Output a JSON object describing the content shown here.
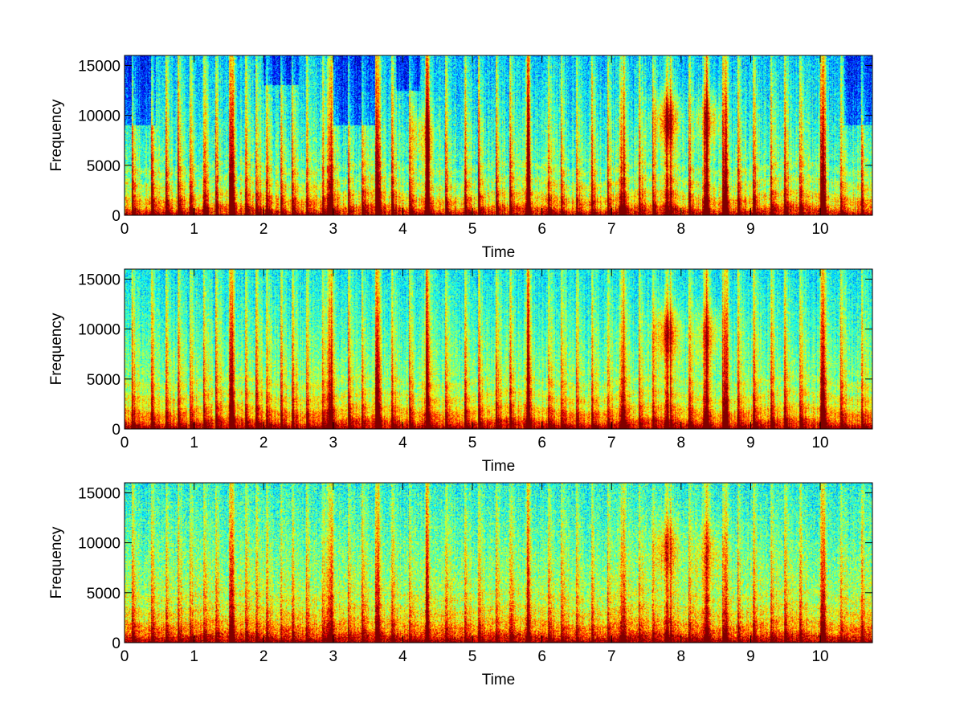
{
  "colors": {
    "background": "#ffffff",
    "colormap": "jet",
    "colormap_stops": [
      "#00008f",
      "#0000ff",
      "#00ffff",
      "#ffff00",
      "#ff0000",
      "#800000"
    ]
  },
  "chart_data": [
    {
      "type": "heatmap",
      "panel": "top",
      "xlabel": "Time",
      "ylabel": "Frequency",
      "xlim": [
        0,
        10.75
      ],
      "ylim": [
        0,
        16000
      ],
      "x_ticks": [
        0,
        1,
        2,
        3,
        4,
        5,
        6,
        7,
        8,
        9,
        10
      ],
      "x_tick_labels": [
        "0",
        "1",
        "2",
        "3",
        "4",
        "5",
        "6",
        "7",
        "8",
        "9",
        "10"
      ],
      "y_ticks": [
        0,
        5000,
        10000,
        15000
      ],
      "y_tick_labels": [
        "0",
        "5000",
        "10000",
        "15000"
      ],
      "colormap": "jet",
      "grid": false,
      "contrast": 1.0,
      "noise": 0.22,
      "base_level": 0.38,
      "onsets": [
        0.12,
        0.4,
        0.6,
        0.78,
        0.95,
        1.15,
        1.32,
        1.52,
        1.75,
        1.9,
        2.05,
        2.25,
        2.42,
        2.62,
        2.85,
        2.98,
        3.22,
        3.42,
        3.62,
        3.85,
        4.1,
        4.35,
        4.62,
        4.9,
        5.1,
        5.35,
        5.55,
        5.8,
        6.1,
        6.28,
        6.5,
        6.72,
        6.95,
        7.18,
        7.4,
        7.6,
        7.85,
        8.12,
        8.38,
        8.6,
        8.82,
        9.05,
        9.3,
        9.5,
        9.72,
        10.02,
        10.3,
        10.6
      ],
      "strong_onsets": [
        1.55,
        2.95,
        3.65,
        4.35,
        5.8,
        7.15,
        7.8,
        8.35,
        8.65,
        10.05
      ],
      "hot_spots": [
        {
          "t": 7.8,
          "f": 9500,
          "strength": 0.45
        },
        {
          "t": 8.4,
          "f": 9500,
          "strength": 0.3
        },
        {
          "t": 4.3,
          "f": 8000,
          "strength": 0.25
        }
      ],
      "quiet_regions": [
        {
          "t0": 0.0,
          "t1": 0.45,
          "f0": 9000,
          "f1": 16000
        },
        {
          "t0": 2.0,
          "t1": 2.5,
          "f0": 13000,
          "f1": 16000
        },
        {
          "t0": 3.0,
          "t1": 3.6,
          "f0": 9000,
          "f1": 16000
        },
        {
          "t0": 3.9,
          "t1": 4.25,
          "f0": 12500,
          "f1": 16000
        },
        {
          "t0": 10.35,
          "t1": 10.75,
          "f0": 9000,
          "f1": 16000
        }
      ]
    },
    {
      "type": "heatmap",
      "panel": "middle",
      "xlabel": "Time",
      "ylabel": "Frequency",
      "xlim": [
        0,
        10.75
      ],
      "ylim": [
        0,
        16000
      ],
      "x_ticks": [
        0,
        1,
        2,
        3,
        4,
        5,
        6,
        7,
        8,
        9,
        10
      ],
      "x_tick_labels": [
        "0",
        "1",
        "2",
        "3",
        "4",
        "5",
        "6",
        "7",
        "8",
        "9",
        "10"
      ],
      "y_ticks": [
        0,
        5000,
        10000,
        15000
      ],
      "y_tick_labels": [
        "0",
        "5000",
        "10000",
        "15000"
      ],
      "colormap": "jet",
      "grid": false,
      "contrast": 0.85,
      "noise": 0.2,
      "base_level": 0.44,
      "onsets": [
        0.12,
        0.4,
        0.6,
        0.78,
        0.95,
        1.15,
        1.32,
        1.52,
        1.75,
        1.9,
        2.05,
        2.25,
        2.42,
        2.62,
        2.85,
        2.98,
        3.22,
        3.42,
        3.62,
        3.85,
        4.1,
        4.35,
        4.62,
        4.9,
        5.1,
        5.35,
        5.55,
        5.8,
        6.1,
        6.28,
        6.5,
        6.72,
        6.95,
        7.18,
        7.4,
        7.6,
        7.85,
        8.12,
        8.38,
        8.6,
        8.82,
        9.05,
        9.3,
        9.5,
        9.72,
        10.02,
        10.3,
        10.6
      ],
      "strong_onsets": [
        1.55,
        2.95,
        3.65,
        4.35,
        5.8,
        7.15,
        7.8,
        8.35,
        8.65,
        10.05
      ],
      "hot_spots": [
        {
          "t": 7.8,
          "f": 9500,
          "strength": 0.4
        },
        {
          "t": 8.4,
          "f": 9500,
          "strength": 0.25
        }
      ],
      "quiet_regions": []
    },
    {
      "type": "heatmap",
      "panel": "bottom",
      "xlabel": "Time",
      "ylabel": "Frequency",
      "xlim": [
        0,
        10.75
      ],
      "ylim": [
        0,
        16000
      ],
      "x_ticks": [
        0,
        1,
        2,
        3,
        4,
        5,
        6,
        7,
        8,
        9,
        10
      ],
      "x_tick_labels": [
        "0",
        "1",
        "2",
        "3",
        "4",
        "5",
        "6",
        "7",
        "8",
        "9",
        "10"
      ],
      "y_ticks": [
        0,
        5000,
        10000,
        15000
      ],
      "y_tick_labels": [
        "0",
        "5000",
        "10000",
        "15000"
      ],
      "colormap": "jet",
      "grid": false,
      "contrast": 0.6,
      "noise": 0.24,
      "base_level": 0.48,
      "onsets": [
        0.12,
        0.4,
        0.6,
        0.78,
        0.95,
        1.15,
        1.32,
        1.52,
        1.75,
        1.9,
        2.05,
        2.25,
        2.42,
        2.62,
        2.85,
        2.98,
        3.22,
        3.42,
        3.62,
        3.85,
        4.1,
        4.35,
        4.62,
        4.9,
        5.1,
        5.35,
        5.55,
        5.8,
        6.1,
        6.28,
        6.5,
        6.72,
        6.95,
        7.18,
        7.4,
        7.6,
        7.85,
        8.12,
        8.38,
        8.6,
        8.82,
        9.05,
        9.3,
        9.5,
        9.72,
        10.02,
        10.3,
        10.6
      ],
      "strong_onsets": [
        1.55,
        2.95,
        3.65,
        4.35,
        5.8,
        7.15,
        7.8,
        8.35,
        8.65,
        10.05
      ],
      "hot_spots": [
        {
          "t": 7.8,
          "f": 9500,
          "strength": 0.3
        },
        {
          "t": 8.4,
          "f": 9000,
          "strength": 0.2
        }
      ],
      "quiet_regions": []
    }
  ]
}
